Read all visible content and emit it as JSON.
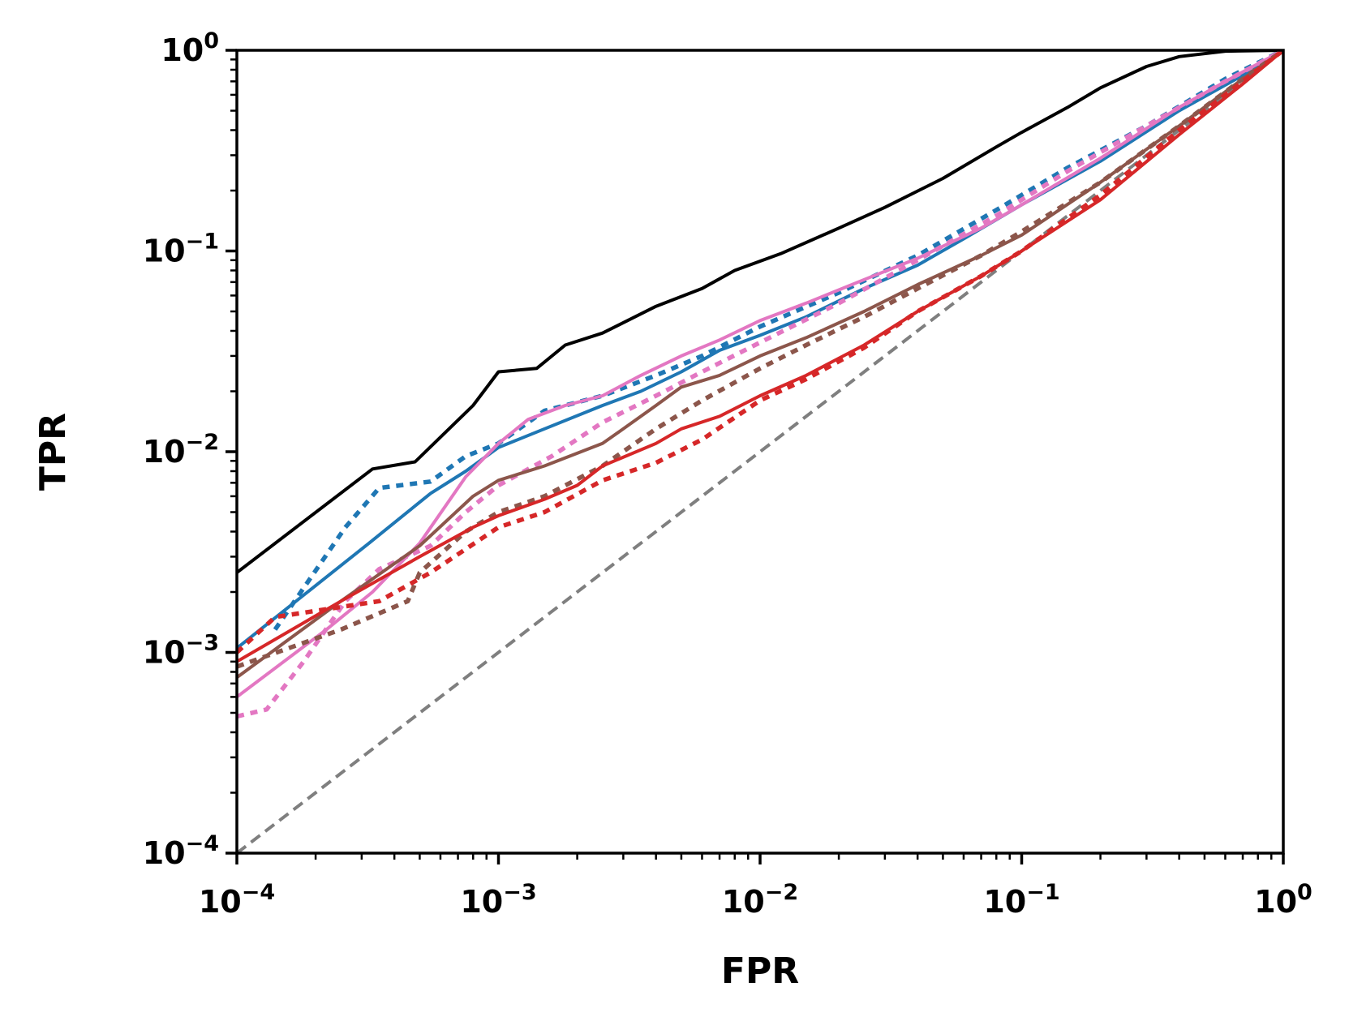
{
  "chart_data": {
    "type": "line",
    "title": "",
    "xlabel": "FPR",
    "ylabel": "TPR",
    "xscale": "log",
    "yscale": "log",
    "xlim": [
      0.0001,
      1
    ],
    "ylim": [
      0.0001,
      1
    ],
    "grid": false,
    "legend": "none",
    "x_ticks": [
      {
        "base": "10",
        "exp": "−4",
        "value": 0.0001
      },
      {
        "base": "10",
        "exp": "−3",
        "value": 0.001
      },
      {
        "base": "10",
        "exp": "−2",
        "value": 0.01
      },
      {
        "base": "10",
        "exp": "−1",
        "value": 0.1
      },
      {
        "base": "10",
        "exp": "0",
        "value": 1
      }
    ],
    "y_ticks": [
      {
        "base": "10",
        "exp": "−4",
        "value": 0.0001
      },
      {
        "base": "10",
        "exp": "−3",
        "value": 0.001
      },
      {
        "base": "10",
        "exp": "−2",
        "value": 0.01
      },
      {
        "base": "10",
        "exp": "−1",
        "value": 0.1
      },
      {
        "base": "10",
        "exp": "0",
        "value": 1
      }
    ],
    "series": [
      {
        "name": "random-baseline",
        "color": "#7f7f7f",
        "style": "dashed",
        "points": [
          [
            0.0001,
            0.0001
          ],
          [
            1,
            1
          ]
        ]
      },
      {
        "name": "black-solid",
        "color": "#000000",
        "style": "solid",
        "points": [
          [
            0.0001,
            0.0025
          ],
          [
            0.00033,
            0.0082
          ],
          [
            0.00048,
            0.0089
          ],
          [
            0.0008,
            0.017
          ],
          [
            0.001,
            0.025
          ],
          [
            0.0014,
            0.026
          ],
          [
            0.0018,
            0.034
          ],
          [
            0.0025,
            0.039
          ],
          [
            0.004,
            0.053
          ],
          [
            0.006,
            0.065
          ],
          [
            0.008,
            0.08
          ],
          [
            0.012,
            0.097
          ],
          [
            0.02,
            0.13
          ],
          [
            0.03,
            0.165
          ],
          [
            0.05,
            0.23
          ],
          [
            0.08,
            0.33
          ],
          [
            0.1,
            0.39
          ],
          [
            0.15,
            0.52
          ],
          [
            0.2,
            0.65
          ],
          [
            0.3,
            0.83
          ],
          [
            0.4,
            0.93
          ],
          [
            0.6,
            0.99
          ],
          [
            1,
            1
          ]
        ]
      },
      {
        "name": "blue-solid",
        "color": "#1f77b4",
        "style": "solid",
        "points": [
          [
            0.0001,
            0.00105
          ],
          [
            0.00032,
            0.0035
          ],
          [
            0.00055,
            0.0062
          ],
          [
            0.00075,
            0.008
          ],
          [
            0.001,
            0.0105
          ],
          [
            0.0015,
            0.013
          ],
          [
            0.0025,
            0.017
          ],
          [
            0.0035,
            0.02
          ],
          [
            0.005,
            0.025
          ],
          [
            0.007,
            0.032
          ],
          [
            0.01,
            0.038
          ],
          [
            0.015,
            0.047
          ],
          [
            0.025,
            0.065
          ],
          [
            0.04,
            0.085
          ],
          [
            0.06,
            0.115
          ],
          [
            0.1,
            0.17
          ],
          [
            0.2,
            0.28
          ],
          [
            0.4,
            0.5
          ],
          [
            0.7,
            0.75
          ],
          [
            1,
            1
          ]
        ]
      },
      {
        "name": "blue-dotted",
        "color": "#1f77b4",
        "style": "dotted",
        "points": [
          [
            0.00014,
            0.0013
          ],
          [
            0.00026,
            0.0042
          ],
          [
            0.00035,
            0.0066
          ],
          [
            0.00055,
            0.0071
          ],
          [
            0.00075,
            0.0095
          ],
          [
            0.001,
            0.011
          ],
          [
            0.0015,
            0.016
          ],
          [
            0.0025,
            0.019
          ],
          [
            0.004,
            0.024
          ],
          [
            0.006,
            0.03
          ],
          [
            0.01,
            0.042
          ],
          [
            0.02,
            0.062
          ],
          [
            0.04,
            0.095
          ],
          [
            0.08,
            0.16
          ],
          [
            0.15,
            0.26
          ],
          [
            0.3,
            0.42
          ],
          [
            0.6,
            0.72
          ],
          [
            1,
            1
          ]
        ]
      },
      {
        "name": "pink-solid",
        "color": "#e377c2",
        "style": "solid",
        "points": [
          [
            0.0001,
            0.0006
          ],
          [
            0.00022,
            0.0013
          ],
          [
            0.00033,
            0.002
          ],
          [
            0.0005,
            0.0035
          ],
          [
            0.00075,
            0.0075
          ],
          [
            0.001,
            0.011
          ],
          [
            0.0013,
            0.0145
          ],
          [
            0.0018,
            0.017
          ],
          [
            0.0025,
            0.019
          ],
          [
            0.0035,
            0.024
          ],
          [
            0.005,
            0.03
          ],
          [
            0.007,
            0.036
          ],
          [
            0.01,
            0.045
          ],
          [
            0.015,
            0.055
          ],
          [
            0.025,
            0.072
          ],
          [
            0.04,
            0.092
          ],
          [
            0.07,
            0.13
          ],
          [
            0.1,
            0.17
          ],
          [
            0.2,
            0.29
          ],
          [
            0.4,
            0.52
          ],
          [
            0.7,
            0.78
          ],
          [
            1,
            1
          ]
        ]
      },
      {
        "name": "pink-dotted",
        "color": "#e377c2",
        "style": "dotted",
        "points": [
          [
            0.0001,
            0.00048
          ],
          [
            0.00013,
            0.00052
          ],
          [
            0.00018,
            0.0009
          ],
          [
            0.00026,
            0.0018
          ],
          [
            0.00035,
            0.0026
          ],
          [
            0.00055,
            0.0034
          ],
          [
            0.00075,
            0.005
          ],
          [
            0.001,
            0.0068
          ],
          [
            0.0016,
            0.0095
          ],
          [
            0.0025,
            0.014
          ],
          [
            0.004,
            0.019
          ],
          [
            0.006,
            0.025
          ],
          [
            0.01,
            0.035
          ],
          [
            0.02,
            0.055
          ],
          [
            0.04,
            0.09
          ],
          [
            0.08,
            0.15
          ],
          [
            0.15,
            0.25
          ],
          [
            0.3,
            0.42
          ],
          [
            0.6,
            0.7
          ],
          [
            1,
            1
          ]
        ]
      },
      {
        "name": "brown-solid",
        "color": "#8c564b",
        "style": "solid",
        "points": [
          [
            0.0001,
            0.00075
          ],
          [
            0.00025,
            0.0018
          ],
          [
            0.0005,
            0.0034
          ],
          [
            0.0008,
            0.006
          ],
          [
            0.001,
            0.0072
          ],
          [
            0.0015,
            0.0085
          ],
          [
            0.0025,
            0.011
          ],
          [
            0.003,
            0.013
          ],
          [
            0.004,
            0.017
          ],
          [
            0.005,
            0.021
          ],
          [
            0.007,
            0.024
          ],
          [
            0.01,
            0.03
          ],
          [
            0.015,
            0.037
          ],
          [
            0.025,
            0.05
          ],
          [
            0.04,
            0.068
          ],
          [
            0.07,
            0.095
          ],
          [
            0.1,
            0.12
          ],
          [
            0.2,
            0.22
          ],
          [
            0.4,
            0.42
          ],
          [
            0.7,
            0.72
          ],
          [
            1,
            1
          ]
        ]
      },
      {
        "name": "brown-dotted",
        "color": "#8c564b",
        "style": "dotted",
        "points": [
          [
            0.0001,
            0.00085
          ],
          [
            0.00025,
            0.0013
          ],
          [
            0.00045,
            0.0018
          ],
          [
            0.0005,
            0.0025
          ],
          [
            0.00075,
            0.004
          ],
          [
            0.001,
            0.005
          ],
          [
            0.0015,
            0.006
          ],
          [
            0.0025,
            0.0085
          ],
          [
            0.004,
            0.013
          ],
          [
            0.006,
            0.018
          ],
          [
            0.01,
            0.026
          ],
          [
            0.015,
            0.034
          ],
          [
            0.025,
            0.047
          ],
          [
            0.04,
            0.065
          ],
          [
            0.07,
            0.095
          ],
          [
            0.1,
            0.125
          ],
          [
            0.2,
            0.22
          ],
          [
            0.4,
            0.42
          ],
          [
            0.7,
            0.72
          ],
          [
            1,
            1
          ]
        ]
      },
      {
        "name": "red-solid",
        "color": "#d62728",
        "style": "solid",
        "points": [
          [
            0.0001,
            0.0009
          ],
          [
            0.00025,
            0.0018
          ],
          [
            0.0005,
            0.003
          ],
          [
            0.0008,
            0.0042
          ],
          [
            0.001,
            0.0048
          ],
          [
            0.0015,
            0.0058
          ],
          [
            0.002,
            0.0068
          ],
          [
            0.0025,
            0.0085
          ],
          [
            0.004,
            0.011
          ],
          [
            0.005,
            0.013
          ],
          [
            0.007,
            0.015
          ],
          [
            0.01,
            0.019
          ],
          [
            0.015,
            0.024
          ],
          [
            0.025,
            0.034
          ],
          [
            0.04,
            0.05
          ],
          [
            0.07,
            0.075
          ],
          [
            0.1,
            0.1
          ],
          [
            0.2,
            0.18
          ],
          [
            0.4,
            0.38
          ],
          [
            0.7,
            0.68
          ],
          [
            1,
            1
          ]
        ]
      },
      {
        "name": "red-dotted",
        "color": "#d62728",
        "style": "dotted",
        "points": [
          [
            0.0001,
            0.001
          ],
          [
            0.00014,
            0.0015
          ],
          [
            0.00035,
            0.0018
          ],
          [
            0.00055,
            0.0025
          ],
          [
            0.001,
            0.0042
          ],
          [
            0.0015,
            0.005
          ],
          [
            0.0025,
            0.0072
          ],
          [
            0.004,
            0.0088
          ],
          [
            0.006,
            0.0115
          ],
          [
            0.01,
            0.018
          ],
          [
            0.015,
            0.023
          ],
          [
            0.025,
            0.033
          ],
          [
            0.04,
            0.05
          ],
          [
            0.07,
            0.075
          ],
          [
            0.1,
            0.1
          ],
          [
            0.2,
            0.19
          ],
          [
            0.4,
            0.4
          ],
          [
            0.7,
            0.7
          ],
          [
            1,
            1
          ]
        ]
      }
    ]
  }
}
